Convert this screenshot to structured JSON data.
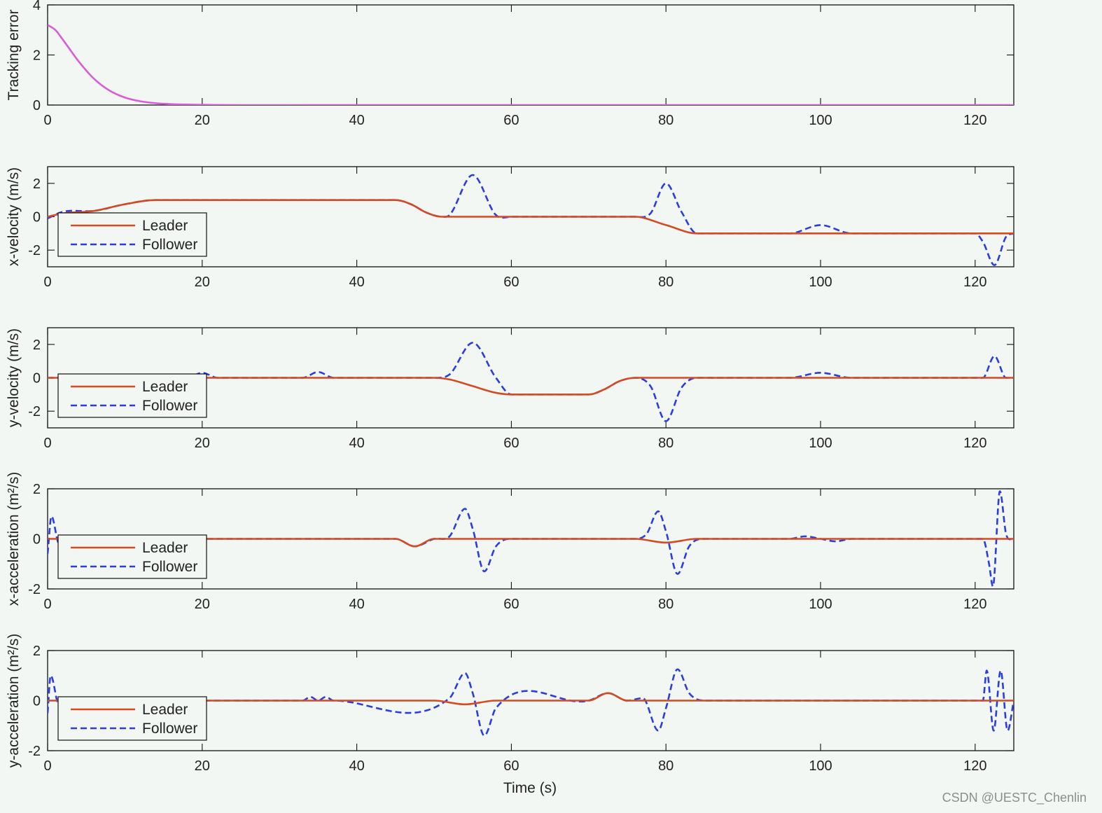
{
  "colors": {
    "background": "#f3f7f3",
    "axes_background": "#f3f7f3",
    "tracking_error": "#d95cd9",
    "leader": "#d44a22",
    "follower": "#2a3ee0"
  },
  "xlabel": "Time (s)",
  "watermark": "CSDN @UESTC_Chenlin",
  "chart_data": [
    {
      "type": "line",
      "ylabel": "Tracking error",
      "xlim": [
        0,
        125
      ],
      "ylim": [
        0,
        4
      ],
      "xticks": [
        0,
        20,
        40,
        60,
        80,
        100,
        120
      ],
      "yticks": [
        0,
        2,
        4
      ],
      "legend": null,
      "series": [
        {
          "role": "tracking",
          "style": "solid",
          "color": "#d95cd9",
          "x": [
            0,
            1,
            2,
            4,
            6,
            8,
            10,
            12,
            15,
            20,
            40,
            60,
            80,
            100,
            125
          ],
          "y": [
            3.2,
            3.0,
            2.6,
            1.75,
            1.05,
            0.58,
            0.3,
            0.15,
            0.05,
            0.01,
            0,
            0,
            0,
            0,
            0
          ]
        }
      ]
    },
    {
      "type": "line",
      "ylabel": "x-velocity (m/s)",
      "xlim": [
        0,
        125
      ],
      "ylim": [
        -3,
        3
      ],
      "xticks": [
        0,
        20,
        40,
        60,
        80,
        100,
        120
      ],
      "yticks": [
        -2,
        0,
        2
      ],
      "legend": {
        "position": "left",
        "entries": [
          "Leader",
          "Follower"
        ]
      },
      "series": [
        {
          "name": "Leader",
          "style": "solid",
          "color": "#d44a22",
          "x": [
            0,
            2,
            6,
            10,
            14,
            45,
            47,
            49,
            51,
            55,
            76,
            80,
            84,
            120,
            125
          ],
          "y": [
            0,
            0.2,
            0.35,
            0.75,
            1,
            1,
            0.75,
            0.25,
            0,
            0,
            0,
            -0.5,
            -1,
            -1,
            -1
          ]
        },
        {
          "name": "Follower",
          "style": "dashed",
          "color": "#2a3ee0",
          "x": [
            0,
            2,
            6,
            10,
            14,
            45,
            47,
            49,
            51,
            52,
            55,
            58,
            60,
            76,
            78,
            80,
            82,
            84,
            96,
            100,
            104,
            120,
            121,
            122.5,
            124,
            125
          ],
          "y": [
            -0.1,
            0.3,
            0.35,
            0.75,
            1,
            1,
            0.75,
            0.25,
            0,
            0.1,
            2.5,
            0.1,
            0,
            0,
            0.2,
            2.0,
            0.3,
            -1,
            -1,
            -0.5,
            -1,
            -1,
            -1.5,
            -2.9,
            -1.2,
            -1
          ]
        }
      ]
    },
    {
      "type": "line",
      "ylabel": "y-velocity (m/s)",
      "xlim": [
        0,
        125
      ],
      "ylim": [
        -3,
        3
      ],
      "xticks": [
        0,
        20,
        40,
        60,
        80,
        100,
        120
      ],
      "yticks": [
        -2,
        0,
        2
      ],
      "legend": {
        "position": "left",
        "entries": [
          "Leader",
          "Follower"
        ]
      },
      "series": [
        {
          "name": "Leader",
          "style": "solid",
          "color": "#d44a22",
          "x": [
            0,
            50,
            52,
            55,
            58,
            60,
            70,
            72,
            74,
            76,
            125
          ],
          "y": [
            0,
            0,
            -0.1,
            -0.5,
            -0.9,
            -1,
            -1,
            -0.7,
            -0.2,
            0,
            0
          ]
        },
        {
          "name": "Follower",
          "style": "dashed",
          "color": "#2a3ee0",
          "x": [
            0,
            18,
            20,
            22,
            33,
            35,
            37,
            50,
            52,
            55,
            58,
            60,
            70,
            72,
            74,
            76,
            78,
            80,
            82,
            84,
            96,
            100,
            104,
            121,
            122.5,
            124,
            125
          ],
          "y": [
            0,
            0,
            0.3,
            0,
            0,
            0.35,
            0,
            0,
            0.2,
            2.1,
            0,
            -1,
            -1,
            -0.7,
            -0.2,
            0,
            -0.5,
            -2.6,
            -0.6,
            0,
            0,
            0.3,
            0,
            0,
            1.3,
            0,
            0
          ]
        }
      ]
    },
    {
      "type": "line",
      "ylabel": "x-acceleration (m²/s)",
      "xlim": [
        0,
        125
      ],
      "ylim": [
        -2,
        2
      ],
      "xticks": [
        0,
        20,
        40,
        60,
        80,
        100,
        120
      ],
      "yticks": [
        -2,
        0,
        2
      ],
      "legend": {
        "position": "left",
        "entries": [
          "Leader",
          "Follower"
        ]
      },
      "series": [
        {
          "name": "Leader",
          "style": "solid",
          "color": "#d44a22",
          "x": [
            0,
            45,
            47.5,
            50,
            76,
            80,
            84,
            125
          ],
          "y": [
            0,
            0,
            -0.3,
            0,
            0,
            -0.15,
            0,
            0
          ]
        },
        {
          "name": "Follower",
          "style": "dashed",
          "color": "#2a3ee0",
          "x": [
            0,
            0.5,
            1.5,
            3,
            45,
            47.5,
            50,
            52,
            54,
            55,
            56.5,
            58,
            60,
            76,
            77.5,
            79,
            80,
            81.5,
            83,
            85,
            96,
            98,
            100,
            102,
            104,
            121,
            121.8,
            122.3,
            123.2,
            124,
            125
          ],
          "y": [
            -0.6,
            0.9,
            -0.2,
            0,
            0,
            -0.3,
            0,
            0.1,
            1.2,
            0.4,
            -1.3,
            -0.3,
            0,
            0,
            0.2,
            1.1,
            0.3,
            -1.4,
            -0.3,
            0,
            0,
            0.1,
            0,
            -0.1,
            0,
            0,
            -1.0,
            -1.9,
            1.9,
            0.2,
            0
          ]
        }
      ]
    },
    {
      "type": "line",
      "ylabel": "y-acceleration (m²/s)",
      "xlim": [
        0,
        125
      ],
      "ylim": [
        -2,
        2
      ],
      "xticks": [
        0,
        20,
        40,
        60,
        80,
        100,
        120
      ],
      "yticks": [
        -2,
        0,
        2
      ],
      "legend": {
        "position": "left",
        "entries": [
          "Leader",
          "Follower"
        ]
      },
      "series": [
        {
          "name": "Leader",
          "style": "solid",
          "color": "#d44a22",
          "x": [
            0,
            50,
            54,
            58,
            70,
            72.5,
            75,
            125
          ],
          "y": [
            0,
            0,
            -0.15,
            0,
            0,
            0.3,
            0,
            0
          ]
        },
        {
          "name": "Follower",
          "style": "dashed",
          "color": "#2a3ee0",
          "x": [
            0,
            0.4,
            1.5,
            3,
            33,
            34,
            35,
            36,
            37,
            52,
            54,
            55,
            56.5,
            58,
            70,
            72.5,
            75,
            77,
            79,
            80,
            81.5,
            83,
            85,
            121,
            121.5,
            122.4,
            123.3,
            124.2,
            125
          ],
          "y": [
            -0.5,
            1.0,
            -0.2,
            0,
            0,
            0.15,
            0,
            0.15,
            0,
            0.1,
            1.1,
            0.3,
            -1.4,
            -0.3,
            0,
            0.3,
            0,
            0.1,
            -1.2,
            -0.3,
            1.25,
            0.3,
            0,
            0,
            1.2,
            -1.2,
            1.2,
            -1.2,
            0
          ]
        }
      ]
    }
  ]
}
